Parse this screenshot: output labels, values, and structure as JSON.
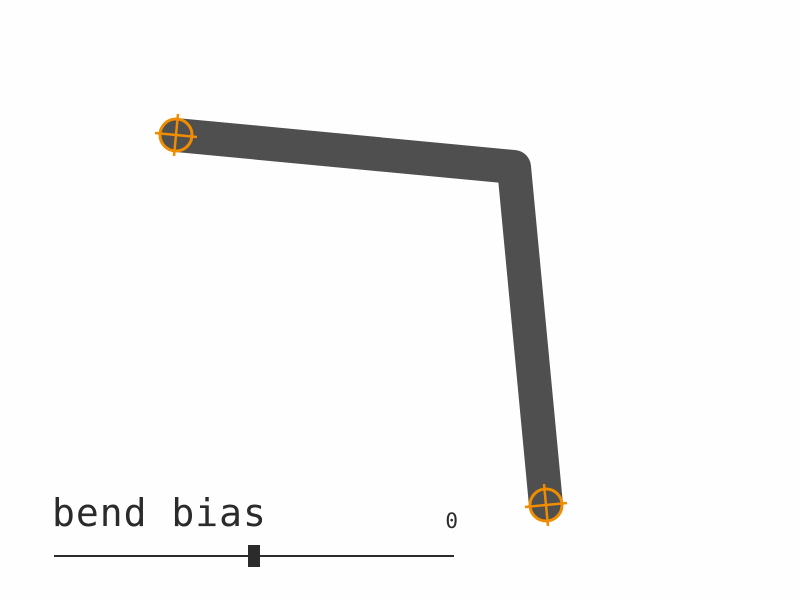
{
  "colors": {
    "background": "#fefefe",
    "arm": "#4f4f4f",
    "handle": "#f08c00",
    "control_text": "#2b2b2b"
  },
  "handles": [
    {
      "name": "start-handle",
      "icon": "crosshair-icon"
    },
    {
      "name": "end-handle",
      "icon": "crosshair-icon"
    }
  ],
  "controls": {
    "bend_bias": {
      "label": "bend bias",
      "value": "0",
      "position_fraction": 0.5
    }
  }
}
